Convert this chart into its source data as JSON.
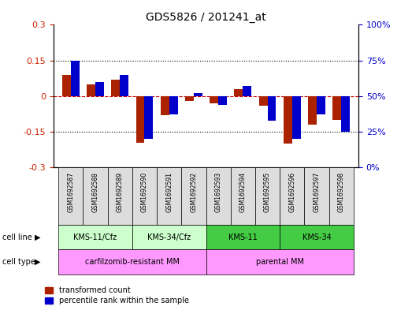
{
  "title": "GDS5826 / 201241_at",
  "samples": [
    "GSM1692587",
    "GSM1692588",
    "GSM1692589",
    "GSM1692590",
    "GSM1692591",
    "GSM1692592",
    "GSM1692593",
    "GSM1692594",
    "GSM1692595",
    "GSM1692596",
    "GSM1692597",
    "GSM1692598"
  ],
  "transformed_count": [
    0.09,
    0.05,
    0.07,
    -0.195,
    -0.08,
    -0.02,
    -0.03,
    0.03,
    -0.04,
    -0.2,
    -0.12,
    -0.1
  ],
  "percentile_rank": [
    75,
    60,
    65,
    20,
    37,
    52,
    44,
    57,
    33,
    20,
    37,
    25
  ],
  "ylim_left": [
    -0.3,
    0.3
  ],
  "ylim_right": [
    0,
    100
  ],
  "yticks_left": [
    -0.3,
    -0.15,
    0,
    0.15,
    0.3
  ],
  "yticks_right": [
    0,
    25,
    50,
    75,
    100
  ],
  "ytick_labels_left": [
    "-0.3",
    "-0.15",
    "0",
    "0.15",
    "0.3"
  ],
  "ytick_labels_right": [
    "0%",
    "25%",
    "50%",
    "75%",
    "100%"
  ],
  "cell_line_groups": [
    {
      "label": "KMS-11/Cfz",
      "start": 0,
      "end": 3,
      "color": "#ccffcc"
    },
    {
      "label": "KMS-34/Cfz",
      "start": 3,
      "end": 6,
      "color": "#ccffcc"
    },
    {
      "label": "KMS-11",
      "start": 6,
      "end": 9,
      "color": "#44dd44"
    },
    {
      "label": "KMS-34",
      "start": 9,
      "end": 12,
      "color": "#44dd44"
    }
  ],
  "cell_type_groups": [
    {
      "label": "carfilzomib-resistant MM",
      "start": 0,
      "end": 6,
      "color": "#ff99ff"
    },
    {
      "label": "parental MM",
      "start": 6,
      "end": 12,
      "color": "#ff99ff"
    }
  ],
  "bar_color_red": "#aa2200",
  "bar_color_blue": "#0000cc",
  "bar_width": 0.35,
  "plot_bg_color": "#ffffff",
  "dashed_zero_color": "#cc0000",
  "left_tick_color": "#cc2200",
  "right_tick_color": "#0000cc"
}
